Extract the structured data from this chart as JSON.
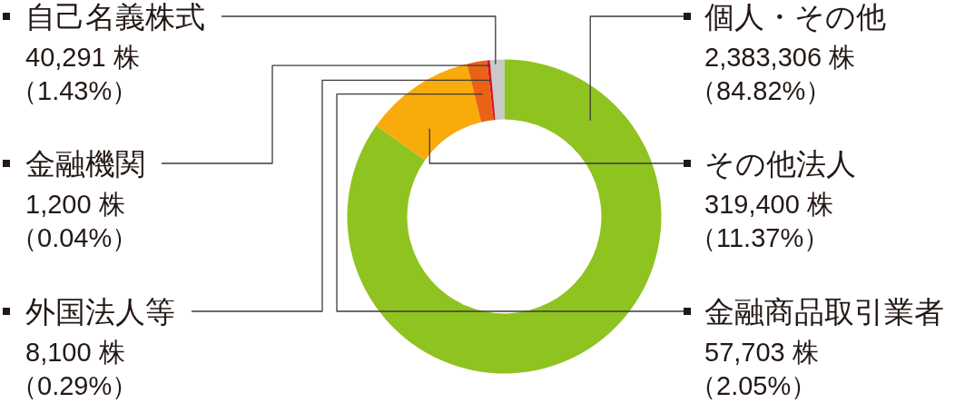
{
  "chart_data": {
    "type": "donut",
    "categories": [
      "個人・その他",
      "その他法人",
      "金融商品取引業者",
      "外国法人等",
      "金融機関",
      "自己名義株式"
    ],
    "values": [
      2383306,
      319400,
      57703,
      8100,
      1200,
      40291
    ],
    "colors": [
      "#8fc31f",
      "#f8ab0b",
      "#ea6218",
      "#d7141e",
      "#c3102a",
      "#c9c9c9"
    ],
    "value_labels": [
      "2,383,306 株（84.82%）",
      "319,400 株（11.37%）",
      "57,703 株（2.05%）",
      "8,100 株（0.29%）",
      "1,200 株（0.04%）",
      "40,291 株（1.43%）"
    ]
  }
}
